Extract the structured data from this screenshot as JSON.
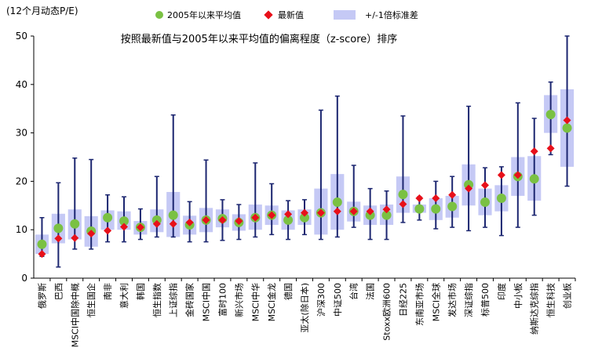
{
  "chart_data": {
    "type": "scatter",
    "title": "按照最新值与2005年以来平均值的偏离程度（z-score）排序",
    "ylabel": "(12个月动态P/E)",
    "ylim": [
      0,
      50
    ],
    "yticks": [
      0,
      10,
      20,
      30,
      40,
      50
    ],
    "legend_position": "top",
    "legend": {
      "avg": "2005年以来平均值",
      "latest": "最新值",
      "band": "+/-1倍标准差"
    },
    "colors": {
      "avg": "#7ac143",
      "latest": "#e8101a",
      "band": "#c5c9f5",
      "whisker": "#1c2670"
    },
    "categories": [
      {
        "name": "俄罗斯",
        "min": 4.5,
        "max": 12.5,
        "avg": 7.0,
        "latest": 5.0,
        "band_low": 5.0,
        "band_high": 9.0
      },
      {
        "name": "巴西",
        "min": 2.3,
        "max": 19.7,
        "avg": 10.3,
        "latest": 8.2,
        "band_low": 7.2,
        "band_high": 13.3
      },
      {
        "name": "MSCI中国除中概",
        "min": 6.0,
        "max": 24.8,
        "avg": 11.2,
        "latest": 8.3,
        "band_low": 8.0,
        "band_high": 14.2
      },
      {
        "name": "恒生国企",
        "min": 6.0,
        "max": 24.5,
        "avg": 9.7,
        "latest": 9.2,
        "band_low": 6.5,
        "band_high": 12.8
      },
      {
        "name": "南非",
        "min": 7.5,
        "max": 17.2,
        "avg": 12.5,
        "latest": 9.8,
        "band_low": 10.0,
        "band_high": 14.0
      },
      {
        "name": "意大利",
        "min": 7.5,
        "max": 16.8,
        "avg": 11.8,
        "latest": 10.6,
        "band_low": 10.0,
        "band_high": 13.8
      },
      {
        "name": "韩国",
        "min": 8.0,
        "max": 14.3,
        "avg": 10.5,
        "latest": 10.5,
        "band_low": 9.0,
        "band_high": 11.8
      },
      {
        "name": "恒生指数",
        "min": 8.5,
        "max": 21.0,
        "avg": 12.0,
        "latest": 11.2,
        "band_low": 9.5,
        "band_high": 14.2
      },
      {
        "name": "上证综指",
        "min": 8.5,
        "max": 33.7,
        "avg": 13.0,
        "latest": 11.2,
        "band_low": 8.5,
        "band_high": 17.8
      },
      {
        "name": "金砖国家",
        "min": 7.5,
        "max": 15.8,
        "avg": 11.0,
        "latest": 11.5,
        "band_low": 9.0,
        "band_high": 12.9
      },
      {
        "name": "MSCI中国",
        "min": 7.5,
        "max": 24.4,
        "avg": 12.0,
        "latest": 12.0,
        "band_low": 9.5,
        "band_high": 14.5
      },
      {
        "name": "富时100",
        "min": 7.8,
        "max": 16.2,
        "avg": 12.3,
        "latest": 12.0,
        "band_low": 10.5,
        "band_high": 14.2
      },
      {
        "name": "新兴市场",
        "min": 8.0,
        "max": 15.2,
        "avg": 11.5,
        "latest": 11.8,
        "band_low": 9.8,
        "band_high": 13.2
      },
      {
        "name": "MSCI中华",
        "min": 8.5,
        "max": 23.8,
        "avg": 12.5,
        "latest": 12.5,
        "band_low": 10.0,
        "band_high": 15.2
      },
      {
        "name": "MSCI金龙",
        "min": 9.0,
        "max": 19.5,
        "avg": 13.0,
        "latest": 13.0,
        "band_low": 11.0,
        "band_high": 15.0
      },
      {
        "name": "德国",
        "min": 8.0,
        "max": 16.0,
        "avg": 12.0,
        "latest": 13.2,
        "band_low": 10.0,
        "band_high": 14.0
      },
      {
        "name": "亚太(除日本)",
        "min": 9.0,
        "max": 16.2,
        "avg": 12.5,
        "latest": 13.5,
        "band_low": 11.0,
        "band_high": 14.2
      },
      {
        "name": "沪深300",
        "min": 8.0,
        "max": 34.7,
        "avg": 13.5,
        "latest": 13.5,
        "band_low": 9.0,
        "band_high": 18.5
      },
      {
        "name": "中证500",
        "min": 8.5,
        "max": 37.6,
        "avg": 15.7,
        "latest": 13.8,
        "band_low": 10.0,
        "band_high": 21.5
      },
      {
        "name": "台湾",
        "min": 10.5,
        "max": 23.3,
        "avg": 13.8,
        "latest": 13.8,
        "band_low": 11.7,
        "band_high": 15.8
      },
      {
        "name": "法国",
        "min": 8.0,
        "max": 18.5,
        "avg": 13.0,
        "latest": 13.8,
        "band_low": 11.0,
        "band_high": 15.0
      },
      {
        "name": "Stoxx欧洲600",
        "min": 8.0,
        "max": 18.0,
        "avg": 13.0,
        "latest": 14.2,
        "band_low": 11.0,
        "band_high": 15.2
      },
      {
        "name": "日经225",
        "min": 11.5,
        "max": 33.5,
        "avg": 17.3,
        "latest": 15.3,
        "band_low": 13.5,
        "band_high": 21.0
      },
      {
        "name": "东南亚市场",
        "min": 12.0,
        "max": 16.8,
        "avg": 14.3,
        "latest": 16.5,
        "band_low": 13.5,
        "band_high": 15.2
      },
      {
        "name": "MSCI全球",
        "min": 10.2,
        "max": 20.0,
        "avg": 14.3,
        "latest": 16.5,
        "band_low": 12.0,
        "band_high": 16.5
      },
      {
        "name": "发达市场",
        "min": 10.5,
        "max": 21.0,
        "avg": 14.8,
        "latest": 17.2,
        "band_low": 12.5,
        "band_high": 17.0
      },
      {
        "name": "深证综指",
        "min": 9.8,
        "max": 35.5,
        "avg": 19.3,
        "latest": 18.5,
        "band_low": 15.0,
        "band_high": 23.5
      },
      {
        "name": "标普500",
        "min": 10.5,
        "max": 22.8,
        "avg": 15.7,
        "latest": 19.2,
        "band_low": 13.0,
        "band_high": 18.5
      },
      {
        "name": "印度",
        "min": 8.8,
        "max": 23.0,
        "avg": 16.5,
        "latest": 21.3,
        "band_low": 13.8,
        "band_high": 19.2
      },
      {
        "name": "中小板",
        "min": 10.5,
        "max": 36.2,
        "avg": 21.0,
        "latest": 21.3,
        "band_low": 17.0,
        "band_high": 25.0
      },
      {
        "name": "纳斯达克综指",
        "min": 13.0,
        "max": 33.0,
        "avg": 20.5,
        "latest": 26.2,
        "band_low": 16.0,
        "band_high": 25.2
      },
      {
        "name": "恒生科技",
        "min": 25.5,
        "max": 40.5,
        "avg": 33.8,
        "latest": 26.8,
        "band_low": 30.0,
        "band_high": 37.8
      },
      {
        "name": "创业板",
        "min": 19.0,
        "max": 50.0,
        "avg": 31.0,
        "latest": 32.6,
        "band_low": 23.0,
        "band_high": 39.0
      }
    ]
  }
}
